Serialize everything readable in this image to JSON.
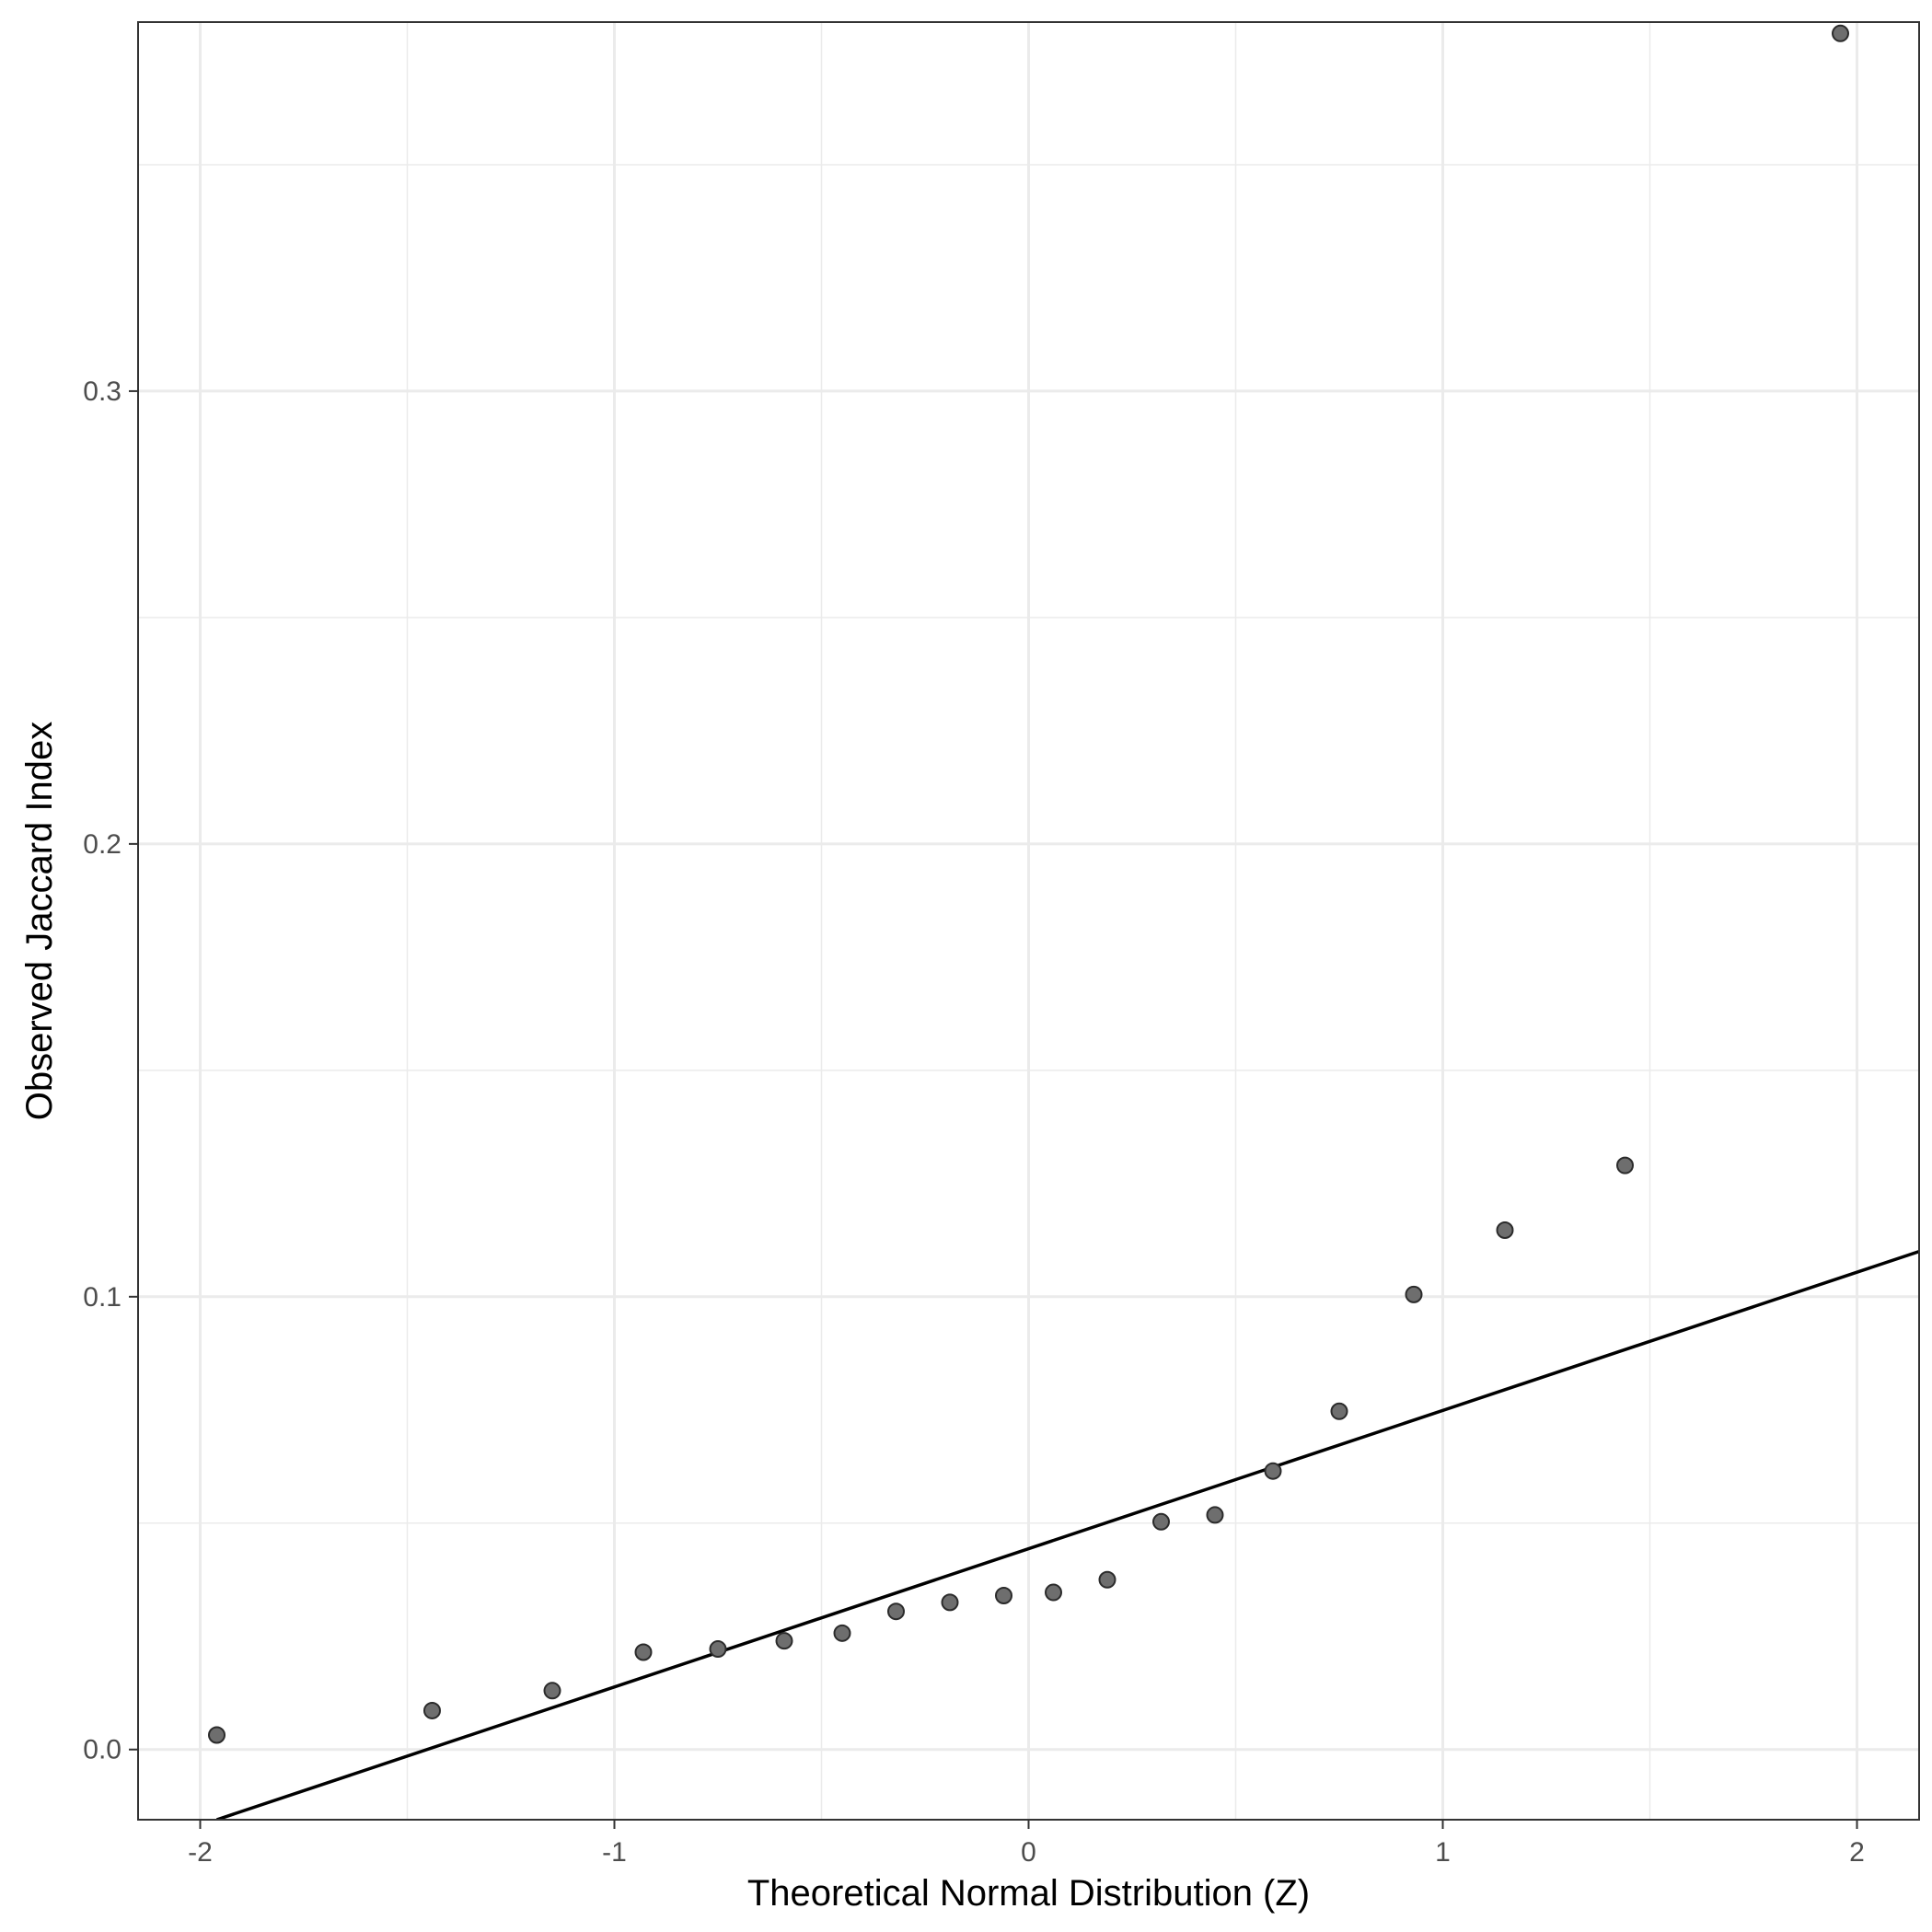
{
  "chart_data": {
    "type": "scatter",
    "title": "",
    "xlabel": "Theoretical Normal Distribution (Z)",
    "ylabel": "Observed Jaccard Index",
    "xlim": [
      -2.15,
      2.15
    ],
    "ylim": [
      -0.0155,
      0.3815
    ],
    "x_ticks": [
      {
        "value": -2,
        "label": "-2"
      },
      {
        "value": -1,
        "label": "-1"
      },
      {
        "value": 0,
        "label": "0"
      },
      {
        "value": 1,
        "label": "1"
      },
      {
        "value": 2,
        "label": "2"
      }
    ],
    "y_ticks": [
      {
        "value": 0.0,
        "label": "0.0"
      },
      {
        "value": 0.1,
        "label": "0.1"
      },
      {
        "value": 0.2,
        "label": "0.2"
      },
      {
        "value": 0.3,
        "label": "0.3"
      }
    ],
    "x_minor": [
      -1.5,
      -0.5,
      0.5,
      1.5
    ],
    "y_minor": [
      0.05,
      0.15,
      0.25,
      0.35
    ],
    "grid": true,
    "legend": "none",
    "point_color": "#6e6e6e",
    "point_stroke": "#2b2b2b",
    "line_color": "#000000",
    "grid_color": "#ebebeb",
    "panel_border_color": "#333333",
    "series": [
      {
        "values": [
          {
            "x": -1.96,
            "y": 0.0032
          },
          {
            "x": -1.44,
            "y": 0.0086
          },
          {
            "x": -1.15,
            "y": 0.013
          },
          {
            "x": -0.93,
            "y": 0.0215
          },
          {
            "x": -0.75,
            "y": 0.0222
          },
          {
            "x": -0.59,
            "y": 0.024
          },
          {
            "x": -0.45,
            "y": 0.0257
          },
          {
            "x": -0.32,
            "y": 0.0305
          },
          {
            "x": -0.19,
            "y": 0.0325
          },
          {
            "x": -0.06,
            "y": 0.034
          },
          {
            "x": 0.06,
            "y": 0.0347
          },
          {
            "x": 0.19,
            "y": 0.0375
          },
          {
            "x": 0.32,
            "y": 0.0503
          },
          {
            "x": 0.45,
            "y": 0.0518
          },
          {
            "x": 0.59,
            "y": 0.0615
          },
          {
            "x": 0.75,
            "y": 0.0747
          },
          {
            "x": 0.93,
            "y": 0.1005
          },
          {
            "x": 1.15,
            "y": 0.1147
          },
          {
            "x": 1.44,
            "y": 0.129
          },
          {
            "x": 1.96,
            "y": 0.379
          }
        ]
      }
    ],
    "reference_line": {
      "type": "qq-line",
      "x": [
        -1.96,
        2.15
      ],
      "y": [
        -0.0155,
        0.11
      ]
    }
  }
}
